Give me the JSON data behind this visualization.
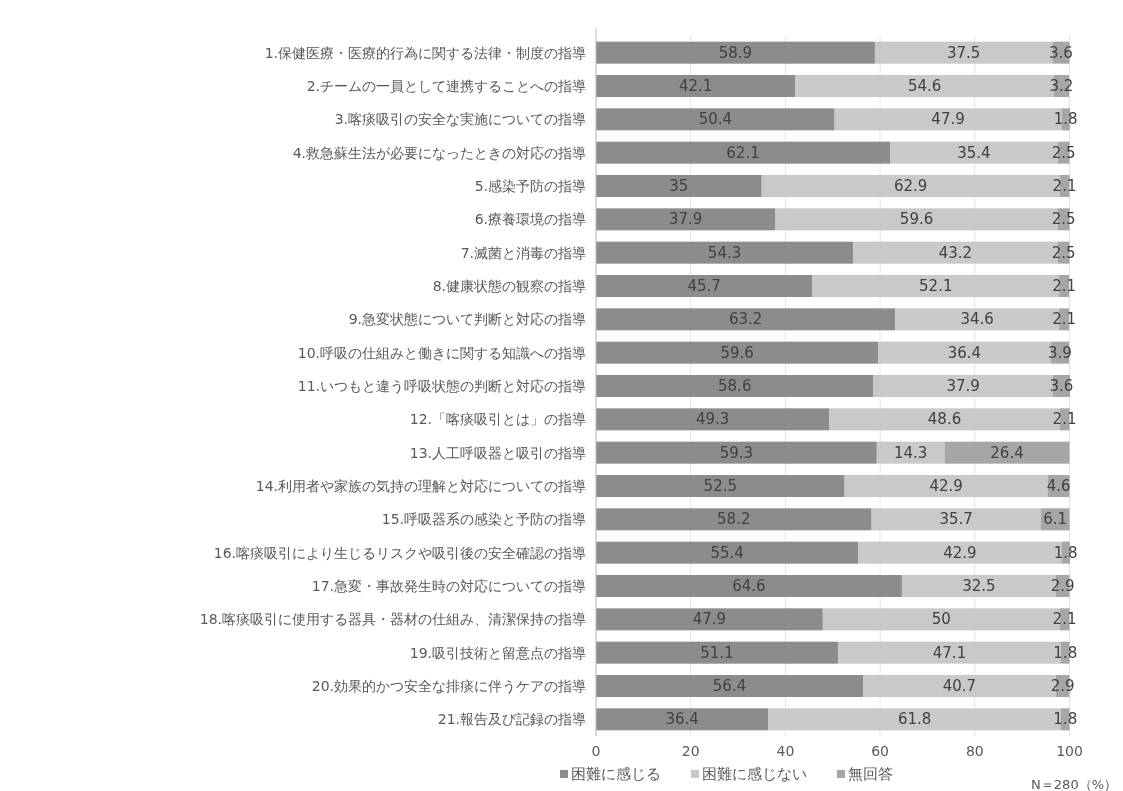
{
  "chart_data": {
    "type": "bar",
    "orientation": "horizontal",
    "stacked": true,
    "data_labels": true,
    "grid": "x",
    "legend": "bottom",
    "categories": [
      "1.保健医療・医療的行為に関する法律・制度の指導",
      "2.チームの一員として連携することへの指導",
      "3.喀痰吸引の安全な実施についての指導",
      "4.救急蘇生法が必要になったときの対応の指導",
      "5.感染予防の指導",
      "6.療養環境の指導",
      "7.滅菌と消毒の指導",
      "8.健康状態の観察の指導",
      "9.急変状態について判断と対応の指導",
      "10.呼吸の仕組みと働きに関する知識への指導",
      "11.いつもと違う呼吸状態の判断と対応の指導",
      "12.「喀痰吸引とは」の指導",
      "13.人工呼吸器と吸引の指導",
      "14.利用者や家族の気持の理解と対応についての指導",
      "15.呼吸器系の感染と予防の指導",
      "16.喀痰吸引により生じるリスクや吸引後の安全確認の指導",
      "17.急変・事故発生時の対応についての指導",
      "18.喀痰吸引に使用する器具・器材の仕組み、清潔保持の指導",
      "19.吸引技術と留意点の指導",
      "20.効果的かつ安全な排痰に伴うケアの指導",
      "21.報告及び記録の指導"
    ],
    "series": [
      {
        "name": "困難に感じる",
        "color": "#8c8c8c",
        "values": [
          58.9,
          42.1,
          50.4,
          62.1,
          35,
          37.9,
          54.3,
          45.7,
          63.2,
          59.6,
          58.6,
          49.3,
          59.3,
          52.5,
          58.2,
          55.4,
          64.6,
          47.9,
          51.1,
          56.4,
          36.4
        ]
      },
      {
        "name": "困難に感じない",
        "color": "#c9c9c9",
        "values": [
          37.5,
          54.6,
          47.9,
          35.4,
          62.9,
          59.6,
          43.2,
          52.1,
          34.6,
          36.4,
          37.9,
          48.6,
          14.3,
          42.9,
          35.7,
          42.9,
          32.5,
          50,
          47.1,
          40.7,
          61.8
        ]
      },
      {
        "name": "無回答",
        "color": "#a6a6a6",
        "values": [
          3.6,
          3.2,
          1.8,
          2.5,
          2.1,
          2.5,
          2.5,
          2.1,
          2.1,
          3.9,
          3.6,
          2.1,
          26.4,
          4.6,
          6.1,
          1.8,
          2.9,
          2.1,
          1.8,
          2.9,
          1.8
        ]
      }
    ],
    "xlim": [
      0,
      100.1
    ],
    "xticks": [
      0,
      20,
      40,
      60,
      80,
      100
    ],
    "annotations": [
      "N＝280（%）"
    ]
  }
}
